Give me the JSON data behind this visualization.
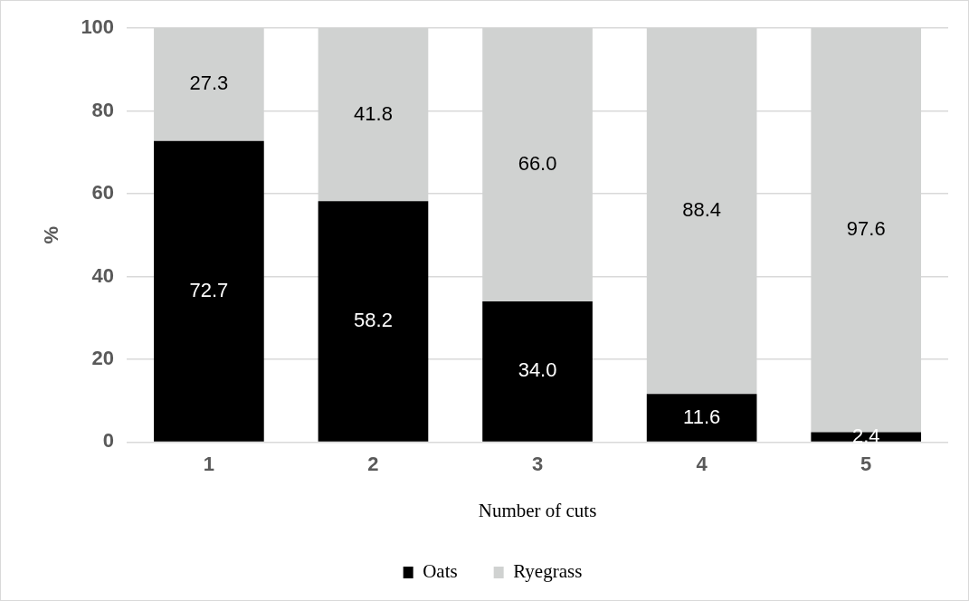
{
  "chart_data": {
    "type": "bar",
    "stacked": true,
    "xlabel": "Number of cuts",
    "ylabel": "%",
    "categories": [
      "1",
      "2",
      "3",
      "4",
      "5"
    ],
    "series": [
      {
        "name": "Oats",
        "color": "#000000",
        "values": [
          72.7,
          58.2,
          34.0,
          11.6,
          2.4
        ],
        "value_labels": [
          "72.7",
          "58.2",
          "34.0",
          "11.6",
          "2.4"
        ]
      },
      {
        "name": "Ryegrass",
        "color": "#d0d2d1",
        "values": [
          27.3,
          41.8,
          66.0,
          88.4,
          97.6
        ],
        "value_labels": [
          "27.3",
          "41.8",
          "66.0",
          "88.4",
          "97.6"
        ]
      }
    ],
    "ylim": [
      0,
      100
    ],
    "yticks": [
      0,
      20,
      40,
      60,
      80,
      100
    ],
    "grid": "y",
    "legend": "bottom"
  }
}
